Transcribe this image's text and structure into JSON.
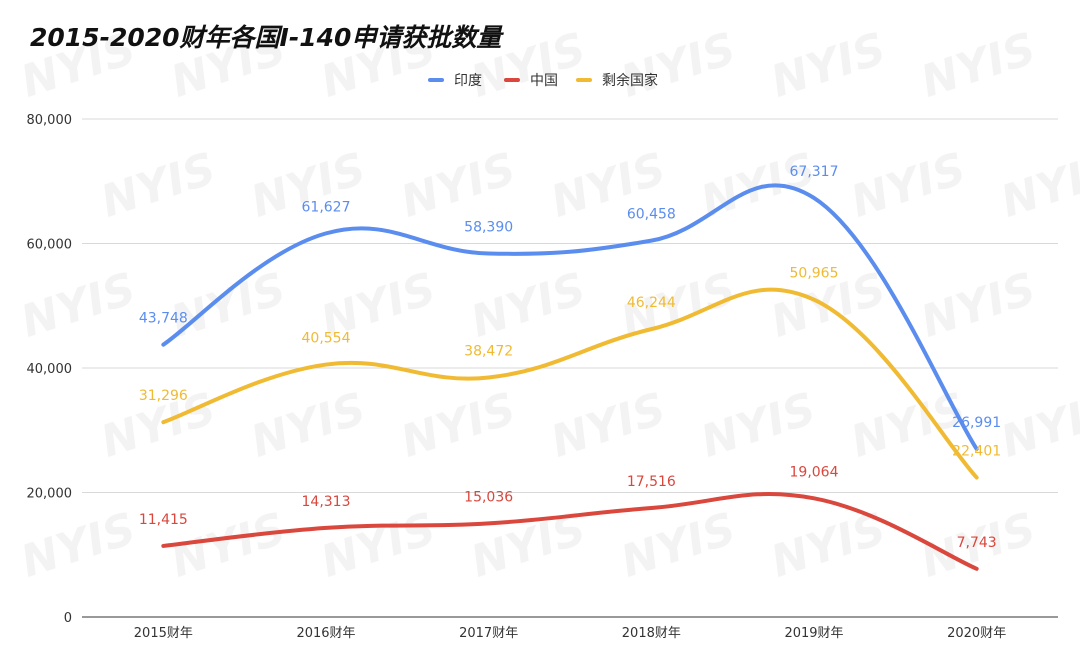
{
  "chart_data": {
    "type": "line",
    "title": "2015-2020财年各国I-140申请获批数量",
    "categories": [
      "2015财年",
      "2016财年",
      "2017财年",
      "2018财年",
      "2019财年",
      "2020财年"
    ],
    "series": [
      {
        "name": "印度",
        "color": "#5B8DEF",
        "values": [
          43748,
          61627,
          58390,
          60458,
          67317,
          26991
        ],
        "labels": [
          "43,748",
          "61,627",
          "58,390",
          "60,458",
          "67,317",
          "26,991"
        ]
      },
      {
        "name": "中国",
        "color": "#D9473D",
        "values": [
          11415,
          14313,
          15036,
          17516,
          19064,
          7743
        ],
        "labels": [
          "11,415",
          "14,313",
          "15,036",
          "17,516",
          "19,064",
          "7,743"
        ]
      },
      {
        "name": "剩余国家",
        "color": "#F0BA33",
        "values": [
          31296,
          40554,
          38472,
          46244,
          50965,
          22401
        ],
        "labels": [
          "31,296",
          "40,554",
          "38,472",
          "46,244",
          "50,965",
          "22,401"
        ]
      }
    ],
    "yticks": [
      0,
      20000,
      40000,
      60000,
      80000
    ],
    "ytick_labels": [
      "0",
      "20,000",
      "40,000",
      "60,000",
      "80,000"
    ],
    "ylim": [
      0,
      80000
    ],
    "xlabel": "",
    "ylabel": "",
    "grid": true,
    "legend_position": "top-center"
  },
  "watermark": "NYIS"
}
